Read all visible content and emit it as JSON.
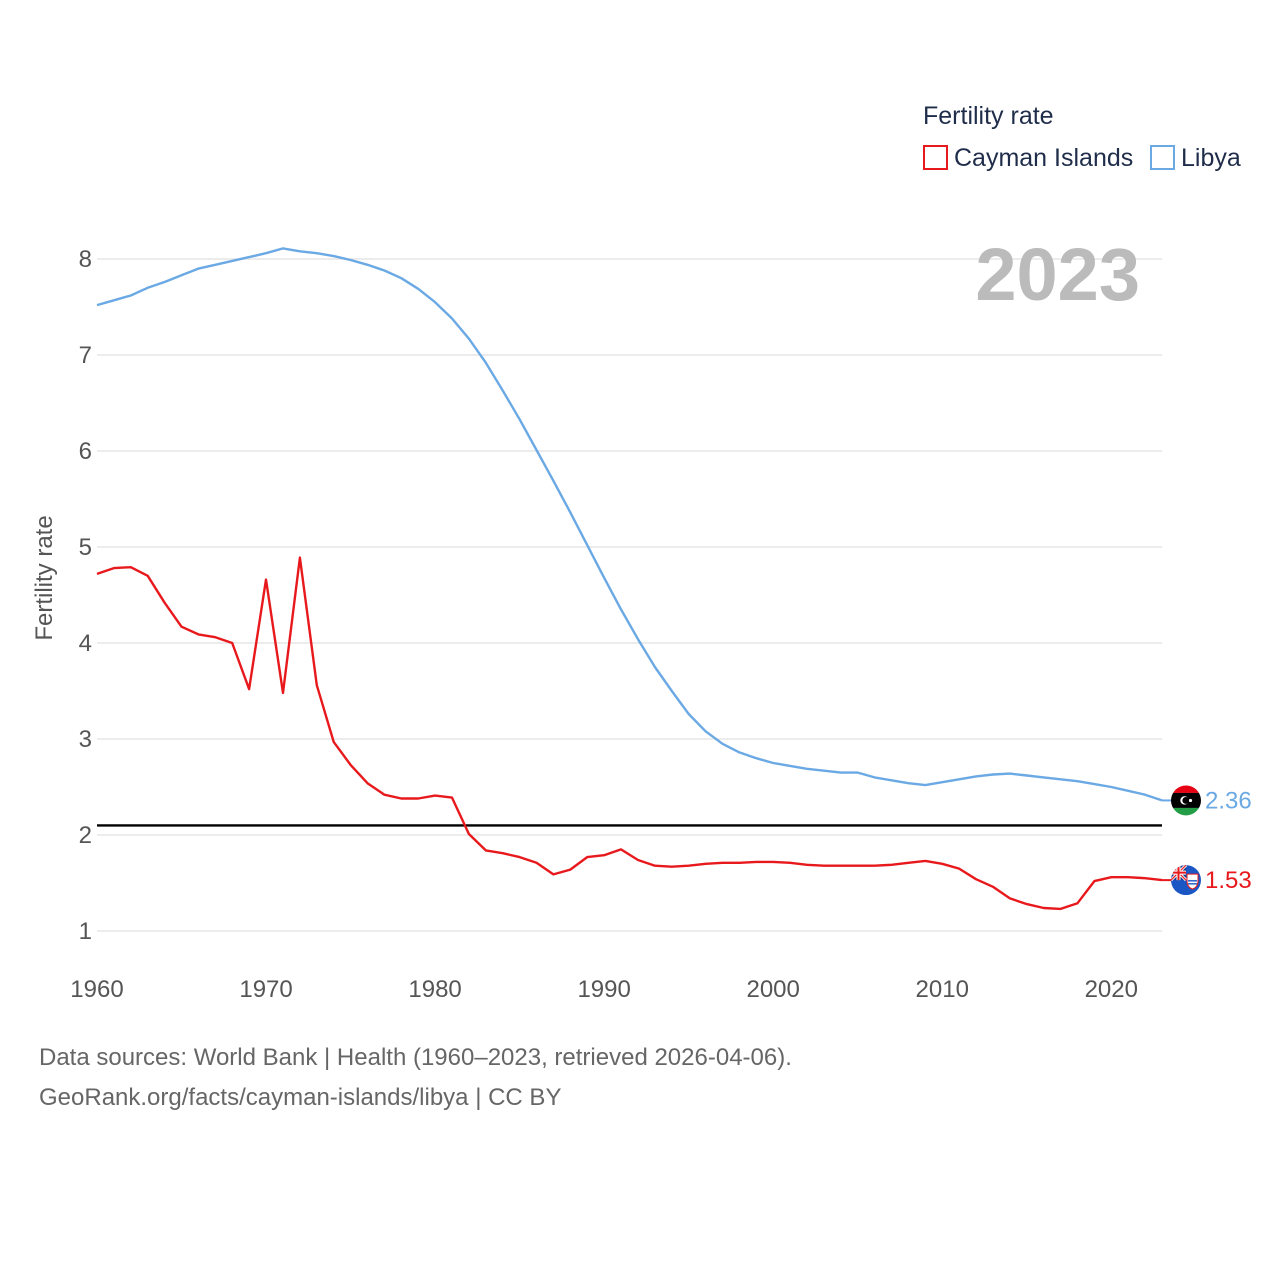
{
  "chart_data": {
    "type": "line",
    "title": "Fertility rate",
    "ylabel": "Fertility rate",
    "xlabel": "",
    "current_year_label": "2023",
    "xlim": [
      1960,
      2023
    ],
    "ylim": [
      0.7,
      8.7
    ],
    "x_ticks": [
      1960,
      1970,
      1980,
      1990,
      2000,
      2010,
      2020
    ],
    "y_ticks": [
      1,
      2,
      3,
      4,
      5,
      6,
      7,
      8
    ],
    "reference_line": {
      "y": 2.1,
      "color": "#000000"
    },
    "legend": {
      "title": "Fertility rate",
      "position": "top-right"
    },
    "x": [
      1960,
      1961,
      1962,
      1963,
      1964,
      1965,
      1966,
      1967,
      1968,
      1969,
      1970,
      1971,
      1972,
      1973,
      1974,
      1975,
      1976,
      1977,
      1978,
      1979,
      1980,
      1981,
      1982,
      1983,
      1984,
      1985,
      1986,
      1987,
      1988,
      1989,
      1990,
      1991,
      1992,
      1993,
      1994,
      1995,
      1996,
      1997,
      1998,
      1999,
      2000,
      2001,
      2002,
      2003,
      2004,
      2005,
      2006,
      2007,
      2008,
      2009,
      2010,
      2011,
      2012,
      2013,
      2014,
      2015,
      2016,
      2017,
      2018,
      2019,
      2020,
      2021,
      2022,
      2023
    ],
    "series": [
      {
        "name": "Cayman Islands",
        "color": "#e8191c",
        "end_label": "1.53",
        "flag_icon": "cayman-islands-flag-icon",
        "values": [
          4.72,
          4.78,
          4.79,
          4.7,
          4.42,
          4.17,
          4.09,
          4.06,
          4.0,
          3.52,
          4.66,
          3.48,
          4.89,
          3.56,
          2.97,
          2.73,
          2.54,
          2.42,
          2.38,
          2.38,
          2.41,
          2.39,
          2.01,
          1.84,
          1.81,
          1.77,
          1.71,
          1.59,
          1.64,
          1.77,
          1.79,
          1.85,
          1.74,
          1.68,
          1.67,
          1.68,
          1.7,
          1.71,
          1.71,
          1.72,
          1.72,
          1.71,
          1.69,
          1.68,
          1.68,
          1.68,
          1.68,
          1.69,
          1.71,
          1.73,
          1.7,
          1.65,
          1.54,
          1.46,
          1.34,
          1.28,
          1.24,
          1.23,
          1.29,
          1.52,
          1.56,
          1.56,
          1.55,
          1.53
        ]
      },
      {
        "name": "Libya",
        "color": "#6aa9e4",
        "end_label": "2.36",
        "flag_icon": "libya-flag-icon",
        "values": [
          7.52,
          7.57,
          7.62,
          7.7,
          7.76,
          7.83,
          7.9,
          7.94,
          7.98,
          8.02,
          8.06,
          8.11,
          8.08,
          8.06,
          8.03,
          7.99,
          7.94,
          7.88,
          7.8,
          7.69,
          7.55,
          7.38,
          7.17,
          6.92,
          6.63,
          6.33,
          6.01,
          5.69,
          5.36,
          5.02,
          4.68,
          4.35,
          4.04,
          3.75,
          3.5,
          3.26,
          3.08,
          2.95,
          2.86,
          2.8,
          2.75,
          2.72,
          2.69,
          2.67,
          2.65,
          2.65,
          2.6,
          2.57,
          2.54,
          2.52,
          2.55,
          2.58,
          2.61,
          2.63,
          2.64,
          2.62,
          2.6,
          2.58,
          2.56,
          2.53,
          2.5,
          2.46,
          2.42,
          2.36
        ]
      }
    ]
  },
  "footer": {
    "line1": "Data sources: World Bank | Health (1960–2023, retrieved 2026-04-06).",
    "line2": "GeoRank.org/facts/cayman-islands/libya | CC BY"
  }
}
